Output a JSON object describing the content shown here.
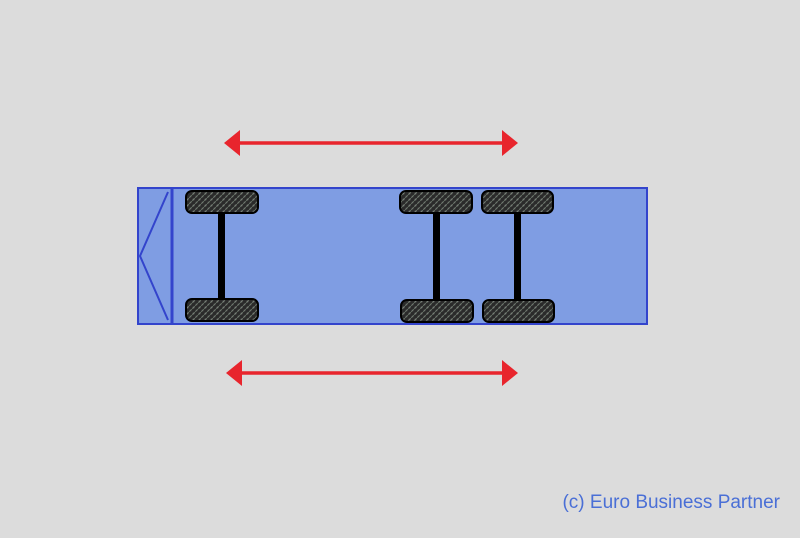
{
  "diagram": {
    "type": "vehicle-axle-layout",
    "axles": [
      {
        "id": "axle-1",
        "role": "front"
      },
      {
        "id": "axle-2",
        "role": "rear"
      },
      {
        "id": "axle-3",
        "role": "rear"
      }
    ],
    "arrows": [
      {
        "id": "top-arrow",
        "direction": "both"
      },
      {
        "id": "bottom-arrow",
        "direction": "both"
      }
    ]
  },
  "colors": {
    "background": "#dcdcdc",
    "body_fill": "#7f9de3",
    "body_border": "#3344cc",
    "tire_fill": "#2a2a2a",
    "tire_border": "#000000",
    "axle": "#000000",
    "arrow": "#e8252d",
    "copyright_text": "#4a6fd6"
  },
  "icons": {
    "tire": "tire-icon",
    "arrow": "double-arrow-icon"
  },
  "footer": {
    "copyright": "(c) Euro Business Partner"
  }
}
